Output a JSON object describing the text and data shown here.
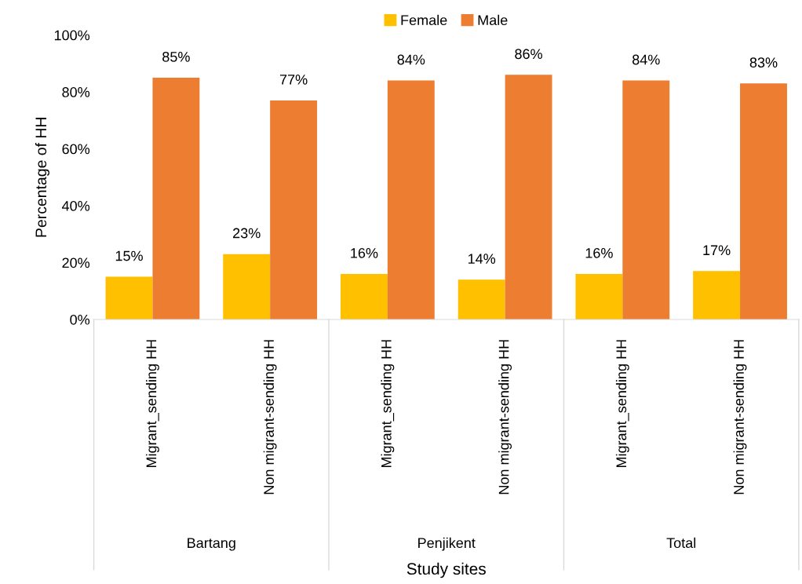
{
  "chart_data": {
    "type": "bar",
    "xlabel": "Study sites",
    "ylabel": "Percentage of HH",
    "categories": [
      "Migrant_sending HH",
      "Non migrant-sending HH",
      "Migrant_sending HH",
      "Non migrant-sending HH",
      "Migrant_sending HH",
      "Non migrant-sending HH"
    ],
    "series": [
      {
        "name": "Female",
        "color": "#ffc000",
        "values": [
          15,
          23,
          16,
          14,
          16,
          17
        ],
        "value_labels": [
          "15%",
          "23%",
          "16%",
          "14%",
          "16%",
          "17%"
        ]
      },
      {
        "name": "Male",
        "color": "#ed7d31",
        "values": [
          85,
          77,
          84,
          86,
          84,
          83
        ],
        "value_labels": [
          "85%",
          "77%",
          "84%",
          "86%",
          "84%",
          "83%"
        ]
      }
    ],
    "ylim": [
      0,
      100
    ],
    "yticks": [
      {
        "value": 0,
        "label": "0%"
      },
      {
        "value": 20,
        "label": "20%"
      },
      {
        "value": 40,
        "label": "40%"
      },
      {
        "value": 60,
        "label": "60%"
      },
      {
        "value": 80,
        "label": "80%"
      },
      {
        "value": 100,
        "label": "100%"
      }
    ],
    "grid": false,
    "legend": "top",
    "annotations": [
      "Bartang",
      "Penjikent",
      "Total"
    ]
  }
}
